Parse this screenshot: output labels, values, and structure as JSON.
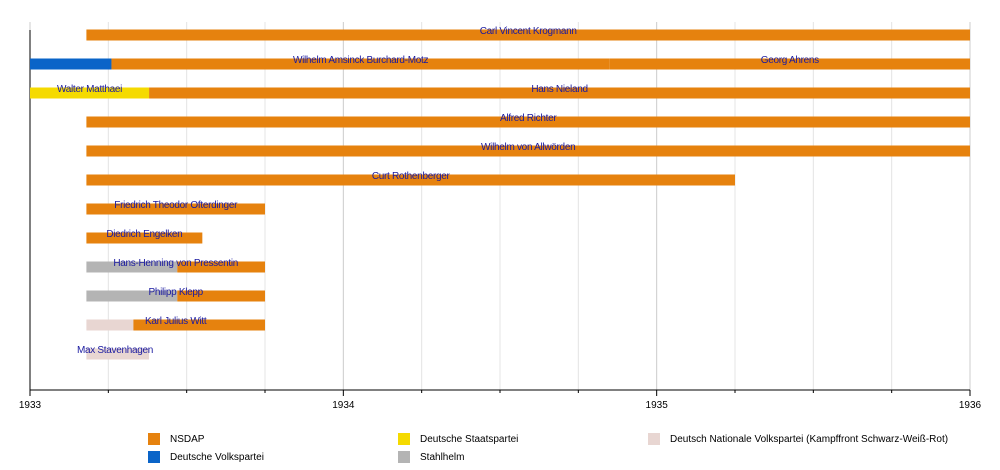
{
  "chart_data": {
    "type": "timeline",
    "title": "",
    "xlim": [
      1933,
      1936
    ],
    "x_ticks": [
      "1933",
      "1934",
      "1935",
      "1936"
    ],
    "grid": "vertical quarterly",
    "parties": {
      "NSDAP": "#E6820E",
      "Deutsche Volkspartei": "#0A64C8",
      "Deutsche Staatspartei": "#F5DA00",
      "Stahlhelm": "#B4B4B4",
      "Deutsch Nationale Volkspartei (Kampffront Schwarz-Weiß-Rot)": "#E8D6D2"
    },
    "rows": [
      {
        "segments": [
          {
            "label": "Carl Vincent Krogmann",
            "party": "NSDAP",
            "start": 1933.18,
            "end": 1936.0
          }
        ]
      },
      {
        "segments": [
          {
            "label": "",
            "party": "Deutsche Volkspartei",
            "start": 1933.0,
            "end": 1933.26
          },
          {
            "label": "Wilhelm Amsinck Burchard-Motz",
            "party": "NSDAP",
            "start": 1933.26,
            "end": 1934.85
          },
          {
            "label": "Georg Ahrens",
            "party": "NSDAP",
            "start": 1934.85,
            "end": 1936.0
          }
        ]
      },
      {
        "segments": [
          {
            "label": "Walter Matthaei",
            "party": "Deutsche Staatspartei",
            "start": 1933.0,
            "end": 1933.38
          },
          {
            "label": "Hans Nieland",
            "party": "NSDAP",
            "start": 1933.38,
            "end": 1936.0
          }
        ]
      },
      {
        "segments": [
          {
            "label": "Alfred Richter",
            "party": "NSDAP",
            "start": 1933.18,
            "end": 1936.0
          }
        ]
      },
      {
        "segments": [
          {
            "label": "Wilhelm von Allwörden",
            "party": "NSDAP",
            "start": 1933.18,
            "end": 1936.0
          }
        ]
      },
      {
        "segments": [
          {
            "label": "Curt Rothenberger",
            "party": "NSDAP",
            "start": 1933.18,
            "end": 1935.25
          }
        ]
      },
      {
        "segments": [
          {
            "label": "Friedrich Theodor Ofterdinger",
            "party": "NSDAP",
            "start": 1933.18,
            "end": 1933.75
          }
        ]
      },
      {
        "segments": [
          {
            "label": "Diedrich Engelken",
            "party": "NSDAP",
            "start": 1933.18,
            "end": 1933.55
          }
        ]
      },
      {
        "segments": [
          {
            "label": "",
            "party": "Stahlhelm",
            "start": 1933.18,
            "end": 1933.47
          },
          {
            "label": "Hans-Henning von Pressentin",
            "party": "NSDAP",
            "start": 1933.47,
            "end": 1933.75
          }
        ],
        "name": "Hans-Henning von Pressentin"
      },
      {
        "segments": [
          {
            "label": "",
            "party": "Stahlhelm",
            "start": 1933.18,
            "end": 1933.47
          },
          {
            "label": "Philipp Klepp",
            "party": "NSDAP",
            "start": 1933.47,
            "end": 1933.75
          }
        ],
        "name": "Philipp Klepp"
      },
      {
        "segments": [
          {
            "label": "",
            "party": "Deutsch Nationale Volkspartei (Kampffront Schwarz-Weiß-Rot)",
            "start": 1933.18,
            "end": 1933.33
          },
          {
            "label": "Karl Julius Witt",
            "party": "NSDAP",
            "start": 1933.33,
            "end": 1933.75
          }
        ],
        "name": "Karl Julius Witt"
      },
      {
        "segments": [
          {
            "label": "Max Stavenhagen",
            "party": "Deutsch Nationale Volkspartei (Kampffront Schwarz-Weiß-Rot)",
            "start": 1933.18,
            "end": 1933.38
          }
        ]
      }
    ],
    "legend": [
      "NSDAP",
      "Deutsche Volkspartei",
      "Deutsche Staatspartei",
      "Stahlhelm",
      "Deutsch Nationale Volkspartei (Kampffront Schwarz-Weiß-Rot)"
    ]
  }
}
